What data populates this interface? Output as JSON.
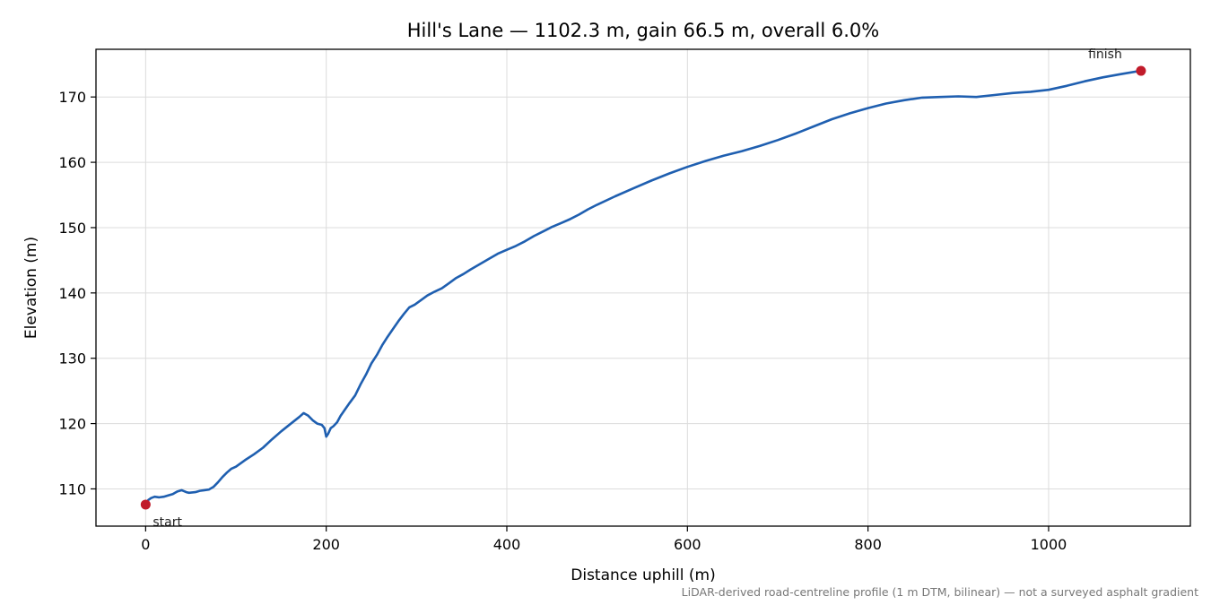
{
  "chart_data": {
    "type": "line",
    "title": "Hill's Lane — 1102.3 m, gain 66.5 m, overall 6.0%",
    "xlabel": "Distance uphill (m)",
    "ylabel": "Elevation (m)",
    "xlim": [
      -55,
      1157
    ],
    "ylim": [
      104.3,
      177.3
    ],
    "xticks": [
      0,
      200,
      400,
      600,
      800,
      1000
    ],
    "yticks": [
      110,
      120,
      130,
      140,
      150,
      160,
      170
    ],
    "grid": true,
    "line_color": "#1f5fb0",
    "marker_color": "#c11b2a",
    "series": [
      {
        "x": [
          0,
          3,
          6,
          10,
          15,
          20,
          25,
          30,
          35,
          40,
          45,
          48,
          55,
          60,
          65,
          70,
          75,
          80,
          85,
          90,
          95,
          100,
          110,
          120,
          130,
          140,
          150,
          160,
          170,
          175,
          180,
          185,
          190,
          195,
          198,
          200,
          202,
          205,
          208,
          212,
          216,
          220,
          226,
          232,
          238,
          244,
          250,
          256,
          262,
          268,
          274,
          280,
          286,
          292,
          298,
          305,
          312,
          320,
          328,
          336,
          344,
          352,
          360,
          370,
          380,
          390,
          400,
          410,
          420,
          430,
          440,
          450,
          460,
          470,
          480,
          490,
          500,
          520,
          540,
          560,
          580,
          600,
          620,
          640,
          660,
          680,
          700,
          720,
          740,
          760,
          780,
          800,
          820,
          840,
          860,
          880,
          900,
          920,
          940,
          960,
          980,
          1000,
          1020,
          1040,
          1060,
          1080,
          1102
        ],
        "y": [
          107.6,
          108.3,
          108.6,
          108.8,
          108.7,
          108.8,
          109.0,
          109.2,
          109.6,
          109.8,
          109.5,
          109.4,
          109.5,
          109.7,
          109.8,
          109.9,
          110.3,
          111.0,
          111.8,
          112.5,
          113.1,
          113.4,
          114.4,
          115.3,
          116.3,
          117.6,
          118.8,
          119.9,
          121.0,
          121.6,
          121.2,
          120.5,
          120.0,
          119.8,
          119.3,
          118.0,
          118.4,
          119.3,
          119.6,
          120.2,
          121.2,
          122.0,
          123.2,
          124.3,
          126.0,
          127.5,
          129.2,
          130.5,
          132.0,
          133.3,
          134.5,
          135.7,
          136.8,
          137.8,
          138.2,
          138.9,
          139.6,
          140.2,
          140.7,
          141.5,
          142.3,
          142.9,
          143.6,
          144.4,
          145.2,
          146.0,
          146.6,
          147.2,
          147.9,
          148.7,
          149.4,
          150.1,
          150.7,
          151.3,
          152.0,
          152.8,
          153.5,
          154.8,
          156.0,
          157.2,
          158.3,
          159.3,
          160.2,
          161.0,
          161.7,
          162.5,
          163.4,
          164.4,
          165.5,
          166.6,
          167.5,
          168.3,
          169.0,
          169.5,
          169.9,
          170.0,
          170.1,
          170.0,
          170.3,
          170.6,
          170.8,
          171.1,
          171.7,
          172.4,
          173.0,
          173.5,
          174.0
        ]
      }
    ],
    "annotations": {
      "start": {
        "label": "start",
        "x": 0,
        "y": 107.6
      },
      "finish": {
        "label": "finish",
        "x": 1102.3,
        "y": 174.0
      }
    },
    "footnote": "LiDAR-derived road-centreline profile (1 m DTM, bilinear) — not a surveyed asphalt gradient"
  }
}
